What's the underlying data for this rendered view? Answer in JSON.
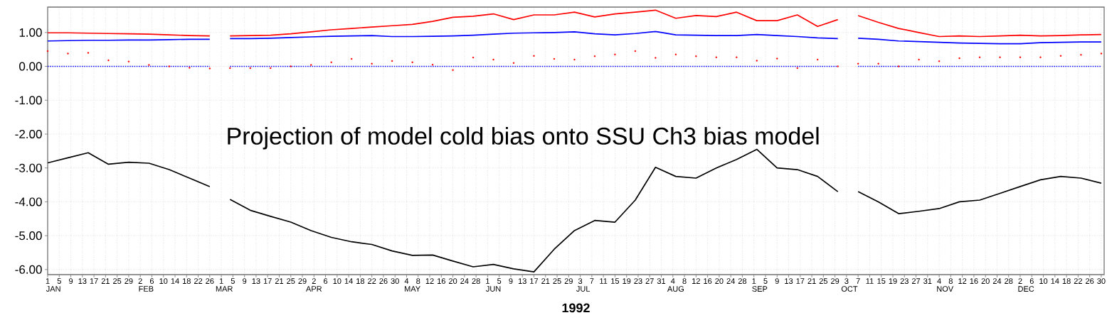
{
  "chart_data": {
    "type": "line",
    "annotations": [
      "Projection of model cold bias onto SSU Ch3 bias model"
    ],
    "xlabel": "1992",
    "xlim": [
      "1992-01-01",
      "1992-12-31"
    ],
    "ylim": [
      -6.15,
      1.75
    ],
    "yticks": [
      {
        "value": 1,
        "label": "1.00"
      },
      {
        "value": 0,
        "label": "0.00"
      },
      {
        "value": -1,
        "label": "-1.00"
      },
      {
        "value": -2,
        "label": "-2.00"
      },
      {
        "value": -3,
        "label": "-3.00"
      },
      {
        "value": -4,
        "label": "-4.00"
      },
      {
        "value": -5,
        "label": "-5.00"
      },
      {
        "value": -6,
        "label": "-6.00"
      }
    ],
    "xticks": [
      {
        "value": "1992-01-01",
        "label": "1"
      },
      {
        "value": "1992-01-05",
        "label": "5"
      },
      {
        "value": "1992-01-09",
        "label": "9"
      },
      {
        "value": "1992-01-13",
        "label": "13"
      },
      {
        "value": "1992-01-17",
        "label": "17"
      },
      {
        "value": "1992-01-21",
        "label": "21"
      },
      {
        "value": "1992-01-25",
        "label": "25"
      },
      {
        "value": "1992-01-29",
        "label": "29"
      },
      {
        "value": "1992-02-02",
        "label": "2"
      },
      {
        "value": "1992-02-06",
        "label": "6"
      },
      {
        "value": "1992-02-10",
        "label": "10"
      },
      {
        "value": "1992-02-14",
        "label": "14"
      },
      {
        "value": "1992-02-18",
        "label": "18"
      },
      {
        "value": "1992-02-22",
        "label": "22"
      },
      {
        "value": "1992-02-26",
        "label": "26"
      },
      {
        "value": "1992-03-01",
        "label": "1"
      },
      {
        "value": "1992-03-05",
        "label": "5"
      },
      {
        "value": "1992-03-09",
        "label": "9"
      },
      {
        "value": "1992-03-13",
        "label": "13"
      },
      {
        "value": "1992-03-17",
        "label": "17"
      },
      {
        "value": "1992-03-21",
        "label": "21"
      },
      {
        "value": "1992-03-25",
        "label": "25"
      },
      {
        "value": "1992-03-29",
        "label": "29"
      },
      {
        "value": "1992-04-02",
        "label": "2"
      },
      {
        "value": "1992-04-06",
        "label": "6"
      },
      {
        "value": "1992-04-10",
        "label": "10"
      },
      {
        "value": "1992-04-14",
        "label": "14"
      },
      {
        "value": "1992-04-18",
        "label": "18"
      },
      {
        "value": "1992-04-22",
        "label": "22"
      },
      {
        "value": "1992-04-26",
        "label": "26"
      },
      {
        "value": "1992-04-30",
        "label": "30"
      },
      {
        "value": "1992-05-04",
        "label": "4"
      },
      {
        "value": "1992-05-08",
        "label": "8"
      },
      {
        "value": "1992-05-12",
        "label": "12"
      },
      {
        "value": "1992-05-16",
        "label": "16"
      },
      {
        "value": "1992-05-20",
        "label": "20"
      },
      {
        "value": "1992-05-24",
        "label": "24"
      },
      {
        "value": "1992-05-28",
        "label": "28"
      },
      {
        "value": "1992-06-01",
        "label": "1"
      },
      {
        "value": "1992-06-05",
        "label": "5"
      },
      {
        "value": "1992-06-09",
        "label": "9"
      },
      {
        "value": "1992-06-13",
        "label": "13"
      },
      {
        "value": "1992-06-17",
        "label": "17"
      },
      {
        "value": "1992-06-21",
        "label": "21"
      },
      {
        "value": "1992-06-25",
        "label": "25"
      },
      {
        "value": "1992-06-29",
        "label": "29"
      },
      {
        "value": "1992-07-03",
        "label": "3"
      },
      {
        "value": "1992-07-07",
        "label": "7"
      },
      {
        "value": "1992-07-11",
        "label": "11"
      },
      {
        "value": "1992-07-15",
        "label": "15"
      },
      {
        "value": "1992-07-19",
        "label": "19"
      },
      {
        "value": "1992-07-23",
        "label": "23"
      },
      {
        "value": "1992-07-27",
        "label": "27"
      },
      {
        "value": "1992-07-31",
        "label": "31"
      },
      {
        "value": "1992-08-04",
        "label": "4"
      },
      {
        "value": "1992-08-08",
        "label": "8"
      },
      {
        "value": "1992-08-12",
        "label": "12"
      },
      {
        "value": "1992-08-16",
        "label": "16"
      },
      {
        "value": "1992-08-20",
        "label": "20"
      },
      {
        "value": "1992-08-24",
        "label": "24"
      },
      {
        "value": "1992-08-28",
        "label": "28"
      },
      {
        "value": "1992-09-01",
        "label": "1"
      },
      {
        "value": "1992-09-05",
        "label": "5"
      },
      {
        "value": "1992-09-09",
        "label": "9"
      },
      {
        "value": "1992-09-13",
        "label": "13"
      },
      {
        "value": "1992-09-17",
        "label": "17"
      },
      {
        "value": "1992-09-21",
        "label": "21"
      },
      {
        "value": "1992-09-25",
        "label": "25"
      },
      {
        "value": "1992-09-29",
        "label": "29"
      },
      {
        "value": "1992-10-03",
        "label": "3"
      },
      {
        "value": "1992-10-07",
        "label": "7"
      },
      {
        "value": "1992-10-11",
        "label": "11"
      },
      {
        "value": "1992-10-15",
        "label": "15"
      },
      {
        "value": "1992-10-19",
        "label": "19"
      },
      {
        "value": "1992-10-23",
        "label": "23"
      },
      {
        "value": "1992-10-27",
        "label": "27"
      },
      {
        "value": "1992-10-31",
        "label": "31"
      },
      {
        "value": "1992-11-04",
        "label": "4"
      },
      {
        "value": "1992-11-08",
        "label": "8"
      },
      {
        "value": "1992-11-12",
        "label": "12"
      },
      {
        "value": "1992-11-16",
        "label": "16"
      },
      {
        "value": "1992-11-20",
        "label": "20"
      },
      {
        "value": "1992-11-24",
        "label": "24"
      },
      {
        "value": "1992-11-28",
        "label": "28"
      },
      {
        "value": "1992-12-02",
        "label": "2"
      },
      {
        "value": "1992-12-06",
        "label": "6"
      },
      {
        "value": "1992-12-10",
        "label": "10"
      },
      {
        "value": "1992-12-14",
        "label": "14"
      },
      {
        "value": "1992-12-18",
        "label": "18"
      },
      {
        "value": "1992-12-22",
        "label": "22"
      },
      {
        "value": "1992-12-26",
        "label": "26"
      },
      {
        "value": "1992-12-30",
        "label": "30"
      }
    ],
    "x2lim": [
      "1992-01-01",
      "1992-12-31"
    ],
    "x2ticks": [
      {
        "value": "1992-01-03",
        "label": "JAN"
      },
      {
        "value": "1992-02-04",
        "label": "FEB"
      },
      {
        "value": "1992-03-02",
        "label": "MAR"
      },
      {
        "value": "1992-04-02",
        "label": "APR"
      },
      {
        "value": "1992-05-06",
        "label": "MAY"
      },
      {
        "value": "1992-06-03",
        "label": "JUN"
      },
      {
        "value": "1992-07-04",
        "label": "JUL"
      },
      {
        "value": "1992-08-05",
        "label": "AUG"
      },
      {
        "value": "1992-09-03",
        "label": "SEP"
      },
      {
        "value": "1992-10-04",
        "label": "OCT"
      },
      {
        "value": "1992-11-06",
        "label": "NOV"
      },
      {
        "value": "1992-12-04",
        "label": "DEC"
      }
    ],
    "grid": true,
    "x": [
      "1992-01-01",
      "1992-01-08",
      "1992-01-15",
      "1992-01-22",
      "1992-01-29",
      "1992-02-05",
      "1992-02-12",
      "1992-02-19",
      "1992-02-26",
      "1992-03-01",
      "1992-03-04",
      "1992-03-11",
      "1992-03-18",
      "1992-03-25",
      "1992-04-01",
      "1992-04-08",
      "1992-04-15",
      "1992-04-22",
      "1992-04-29",
      "1992-05-06",
      "1992-05-13",
      "1992-05-20",
      "1992-05-27",
      "1992-06-03",
      "1992-06-10",
      "1992-06-17",
      "1992-06-24",
      "1992-07-01",
      "1992-07-08",
      "1992-07-15",
      "1992-07-22",
      "1992-07-29",
      "1992-08-05",
      "1992-08-12",
      "1992-08-19",
      "1992-08-26",
      "1992-09-02",
      "1992-09-09",
      "1992-09-16",
      "1992-09-23",
      "1992-09-30",
      "1992-10-05",
      "1992-10-07",
      "1992-10-14",
      "1992-10-21",
      "1992-10-28",
      "1992-11-04",
      "1992-11-11",
      "1992-11-18",
      "1992-11-25",
      "1992-12-02",
      "1992-12-09",
      "1992-12-16",
      "1992-12-23",
      "1992-12-30"
    ],
    "series": [
      {
        "color": "#ff0000",
        "values": [
          0.99,
          0.99,
          0.98,
          0.97,
          0.96,
          0.95,
          0.93,
          0.91,
          0.9,
          null,
          0.9,
          0.91,
          0.92,
          0.96,
          1.02,
          1.08,
          1.12,
          1.16,
          1.2,
          1.24,
          1.33,
          1.45,
          1.48,
          1.55,
          1.38,
          1.52,
          1.52,
          1.6,
          1.46,
          1.55,
          1.6,
          1.66,
          1.42,
          1.5,
          1.47,
          1.6,
          1.35,
          1.35,
          1.52,
          1.18,
          1.38,
          null,
          1.5,
          1.3,
          1.12,
          1.0,
          0.88,
          0.9,
          0.88,
          0.9,
          0.92,
          0.9,
          0.91,
          0.93,
          0.94
        ]
      },
      {
        "color": "#0000ff",
        "values": [
          0.75,
          0.76,
          0.77,
          0.77,
          0.78,
          0.78,
          0.79,
          0.8,
          0.8,
          null,
          0.82,
          0.82,
          0.83,
          0.85,
          0.87,
          0.89,
          0.9,
          0.91,
          0.88,
          0.88,
          0.89,
          0.9,
          0.92,
          0.95,
          0.98,
          0.99,
          1.0,
          1.02,
          0.96,
          0.93,
          0.97,
          1.03,
          0.93,
          0.92,
          0.91,
          0.91,
          0.94,
          0.91,
          0.88,
          0.84,
          0.82,
          null,
          0.83,
          0.8,
          0.75,
          0.73,
          0.71,
          0.69,
          0.68,
          0.67,
          0.67,
          0.7,
          0.71,
          0.72,
          0.72
        ]
      },
      {
        "type": "scatter",
        "marker": "circle",
        "color": "#ff0000",
        "values": [
          0.45,
          0.38,
          0.4,
          0.18,
          0.14,
          0.04,
          0.0,
          -0.04,
          -0.06,
          null,
          -0.05,
          -0.05,
          -0.05,
          0.0,
          0.04,
          0.12,
          0.22,
          0.08,
          0.16,
          0.12,
          0.05,
          -0.11,
          0.26,
          0.2,
          0.1,
          0.31,
          0.22,
          0.2,
          0.3,
          0.35,
          0.45,
          0.25,
          0.35,
          0.3,
          0.27,
          0.27,
          0.17,
          0.23,
          -0.05,
          0.2,
          0.0,
          null,
          0.08,
          0.08,
          0.0,
          0.2,
          0.15,
          0.24,
          0.27,
          0.27,
          0.27,
          0.27,
          0.31,
          0.34,
          0.38
        ]
      },
      {
        "line_style": "dotted",
        "color": "#0000ff",
        "values": [
          0,
          0,
          0,
          0,
          0,
          0,
          0,
          0,
          0,
          null,
          0,
          0,
          0,
          0,
          0,
          0,
          0,
          0,
          0,
          0,
          0,
          0,
          0,
          0,
          0,
          0,
          0,
          0,
          0,
          0,
          0,
          0,
          0,
          0,
          0,
          0,
          0,
          0,
          0,
          0,
          0,
          null,
          0,
          0,
          0,
          0,
          0,
          0,
          0,
          0,
          0,
          0,
          0,
          0,
          0
        ]
      },
      {
        "color": "#000000",
        "values": [
          -2.85,
          -2.7,
          -2.55,
          -2.89,
          -2.83,
          -2.86,
          -3.05,
          -3.3,
          -3.55,
          null,
          -3.93,
          -4.25,
          -4.43,
          -4.6,
          -4.85,
          -5.05,
          -5.18,
          -5.26,
          -5.45,
          -5.58,
          -5.57,
          -5.75,
          -5.92,
          -5.85,
          -5.98,
          -6.07,
          -5.4,
          -4.85,
          -4.55,
          -4.6,
          -3.95,
          -2.98,
          -3.25,
          -3.3,
          -3.0,
          -2.75,
          -2.45,
          -3.0,
          -3.05,
          -3.25,
          -3.7,
          null,
          -3.7,
          -4.0,
          -4.35,
          -4.28,
          -4.2,
          -4.0,
          -3.95,
          -3.75,
          -3.55,
          -3.35,
          -3.25,
          -3.3,
          -3.45
        ]
      }
    ]
  }
}
